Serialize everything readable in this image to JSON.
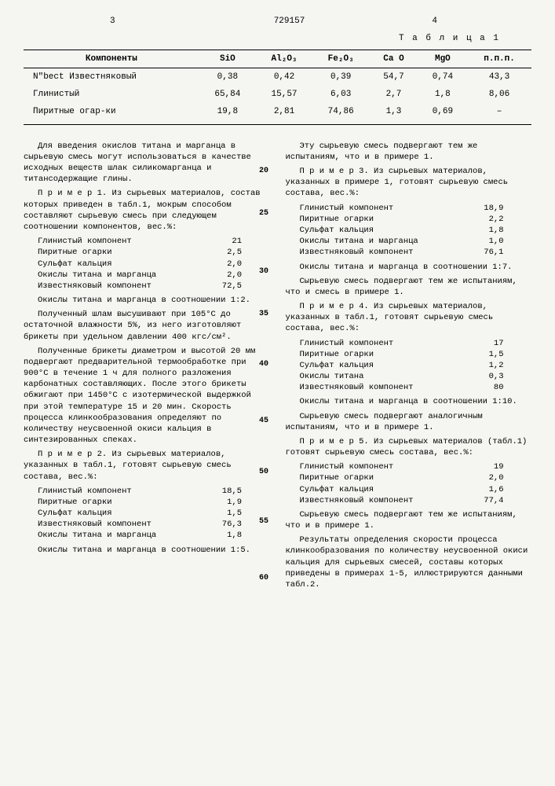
{
  "header": {
    "page_left": "3",
    "doc_num": "729157",
    "page_right": "4"
  },
  "table": {
    "label": "Т а б л и ц а 1",
    "columns": [
      "Компоненты",
      "SiO",
      "Al₂O₃",
      "Fe₂O₃",
      "Ca O",
      "MgO",
      "п.п.п."
    ],
    "rows": [
      [
        "N\"bect Известняковый",
        "0,38",
        "0,42",
        "0,39",
        "54,7",
        "0,74",
        "43,3"
      ],
      [
        "Глинистый",
        "65,84",
        "15,57",
        "6,03",
        "2,7",
        "1,8",
        "8,06"
      ],
      [
        "Пиритные огар-ки",
        "19,8",
        "2,81",
        "74,86",
        "1,3",
        "0,69",
        "–"
      ]
    ]
  },
  "left_col": {
    "p1": "Для введения окислов титана и марганца в сырьевую смесь могут использоваться в качестве исходных веществ шлак силикомарганца и титансодержащие глины.",
    "p2": "П р и м е р  1. Из сырьевых материалов, состав которых приведен в табл.1, мокрым способом составляют сырьевую смесь при следующем соотношении компонентов, вес.%:",
    "comp1": [
      [
        "Глинистый компонент",
        "21"
      ],
      [
        "Пиритные огарки",
        "2,5"
      ],
      [
        "Сульфат кальция",
        "2,0"
      ],
      [
        "Окислы титана и марганца",
        "2,0"
      ],
      [
        "Известняковый компонент",
        "72,5"
      ]
    ],
    "p3": "Окислы титана и марганца в соотношении 1:2.",
    "p4": "Полученный шлам высушивают при 105°С до остаточной влажности 5%, из него изготовляют брикеты при удельном давлении 400 кгс/см².",
    "p5": "Полученные брикеты диаметром и высотой 20 мм подвергают предварительной термообработке при 900°С в течение 1 ч для полного разложения карбонатных составляющих. После этого брикеты обжигают при 1450°С с изотермической выдержкой при этой температуре 15 и 20 мин. Скорость процесса клинкообразования определяют по количеству неусвоенной окиси кальция в синтезированных спеках.",
    "p6": "П р и м е р  2. Из сырьевых материалов, указанных в табл.1, готовят сырьевую смесь состава, вес.%:",
    "comp2": [
      [
        "Глинистый компонент",
        "18,5"
      ],
      [
        "Пиритные огарки",
        "1,9"
      ],
      [
        "Сульфат кальция",
        "1,5"
      ],
      [
        "Известняковый компонент",
        "76,3"
      ],
      [
        "Окислы титана и марганца",
        "1,8"
      ]
    ],
    "p7": "Окислы титана и марганца в соотношении 1:5."
  },
  "right_col": {
    "p1": "Эту сырьевую смесь подвергают тем же испытаниям, что и в примере 1.",
    "p2": "П р и м е р  3. Из сырьевых материалов, указанных в примере 1, готовят сырьевую смесь состава, вес.%:",
    "comp3": [
      [
        "Глинистый компонент",
        "18,9"
      ],
      [
        "Пиритные огарки",
        "2,2"
      ],
      [
        "Сульфат кальция",
        "1,8"
      ],
      [
        "Окислы титана и марганца",
        "1,0"
      ],
      [
        "Известняковый компонент",
        "76,1"
      ]
    ],
    "p3": "Окислы титана и марганца в соотношении 1:7.",
    "p4": "Сырьевую смесь подвергают тем же испытаниям, что и смесь в примере 1.",
    "p5": "П р и м е р  4. Из сырьевых материалов, указанных в табл.1, готовят сырьевую смесь состава, вес.%:",
    "comp4": [
      [
        "Глинистый компонент",
        "17"
      ],
      [
        "Пиритные огарки",
        "1,5"
      ],
      [
        "Сульфат кальция",
        "1,2"
      ],
      [
        "Окислы титана",
        "0,3"
      ],
      [
        "Известняковый компонент",
        "80"
      ]
    ],
    "p6": "Окислы титана и марганца в соотношении 1:10.",
    "p7": "Сырьевую смесь подвергают аналогичным испытаниям, что и в примере 1.",
    "p8": "П р и м е р  5. Из сырьевых материалов (табл.1) готовят сырьевую смесь состава, вес.%:",
    "comp5": [
      [
        "Глинистый компонент",
        "19"
      ],
      [
        "Пиритные огарки",
        "2,0"
      ],
      [
        "Сульфат кальция",
        "1,6"
      ],
      [
        "Известняковый компонент",
        "77,4"
      ]
    ],
    "p9": "Сырьевую смесь подвергают тем же испытаниям, что и в примере 1.",
    "p10": "Результаты определения скорости процесса клинкообразования по количеству неусвоенной окиси кальция для сырьевых смесей, составы которых приведены в примерах 1-5, иллюстрируются данными табл.2."
  },
  "line_nums": [
    "20",
    "25",
    "30",
    "35",
    "40",
    "45",
    "50",
    "55",
    "60"
  ]
}
